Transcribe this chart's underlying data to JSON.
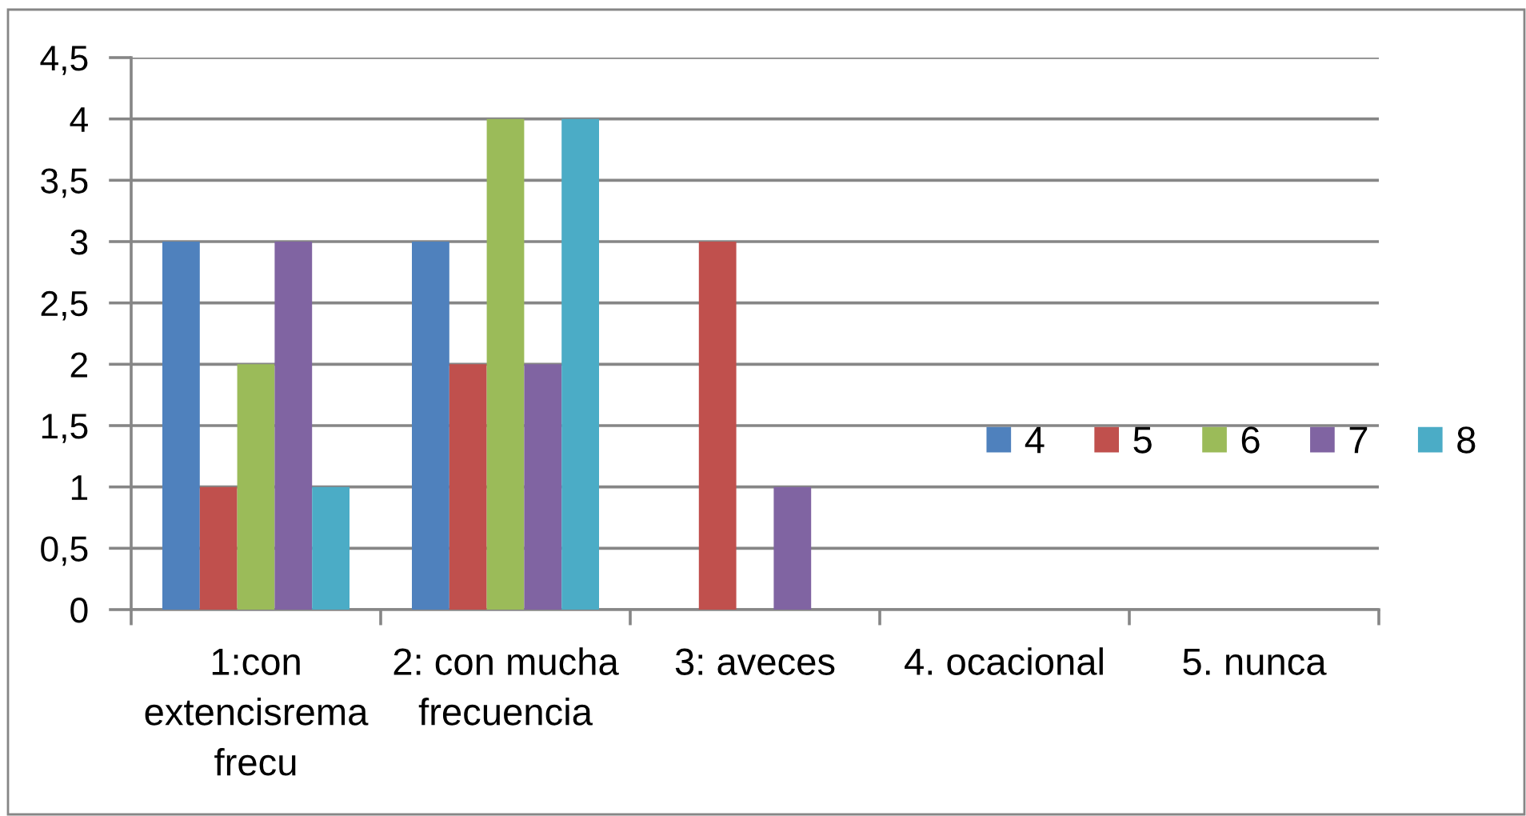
{
  "chart_data": {
    "type": "bar",
    "categories": [
      "1:con extencisrema frecu",
      "2: con mucha frecuencia",
      "3: aveces",
      "4. ocacional",
      "5. nunca"
    ],
    "series": [
      {
        "name": "4",
        "color": "#4f81bd",
        "values": [
          3,
          3,
          0,
          0,
          0
        ]
      },
      {
        "name": "5",
        "color": "#c0504d",
        "values": [
          1,
          2,
          3,
          0,
          0
        ]
      },
      {
        "name": "6",
        "color": "#9bbb59",
        "values": [
          2,
          4,
          0,
          0,
          0
        ]
      },
      {
        "name": "7",
        "color": "#8064a2",
        "values": [
          3,
          2,
          1,
          0,
          0
        ]
      },
      {
        "name": "8",
        "color": "#4bacc6",
        "values": [
          1,
          4,
          0,
          0,
          0
        ]
      }
    ],
    "ylim": [
      0,
      4.5
    ],
    "yticks": [
      0,
      {
        "value": 0.5,
        "label": "0,5"
      },
      1,
      {
        "value": 1.5,
        "label": "1,5"
      },
      2,
      {
        "value": 2.5,
        "label": "2,5"
      },
      3,
      {
        "value": 3.5,
        "label": "3,5"
      },
      4,
      {
        "value": 4.5,
        "label": "4,5"
      }
    ],
    "grid": "y",
    "legend": "right"
  }
}
